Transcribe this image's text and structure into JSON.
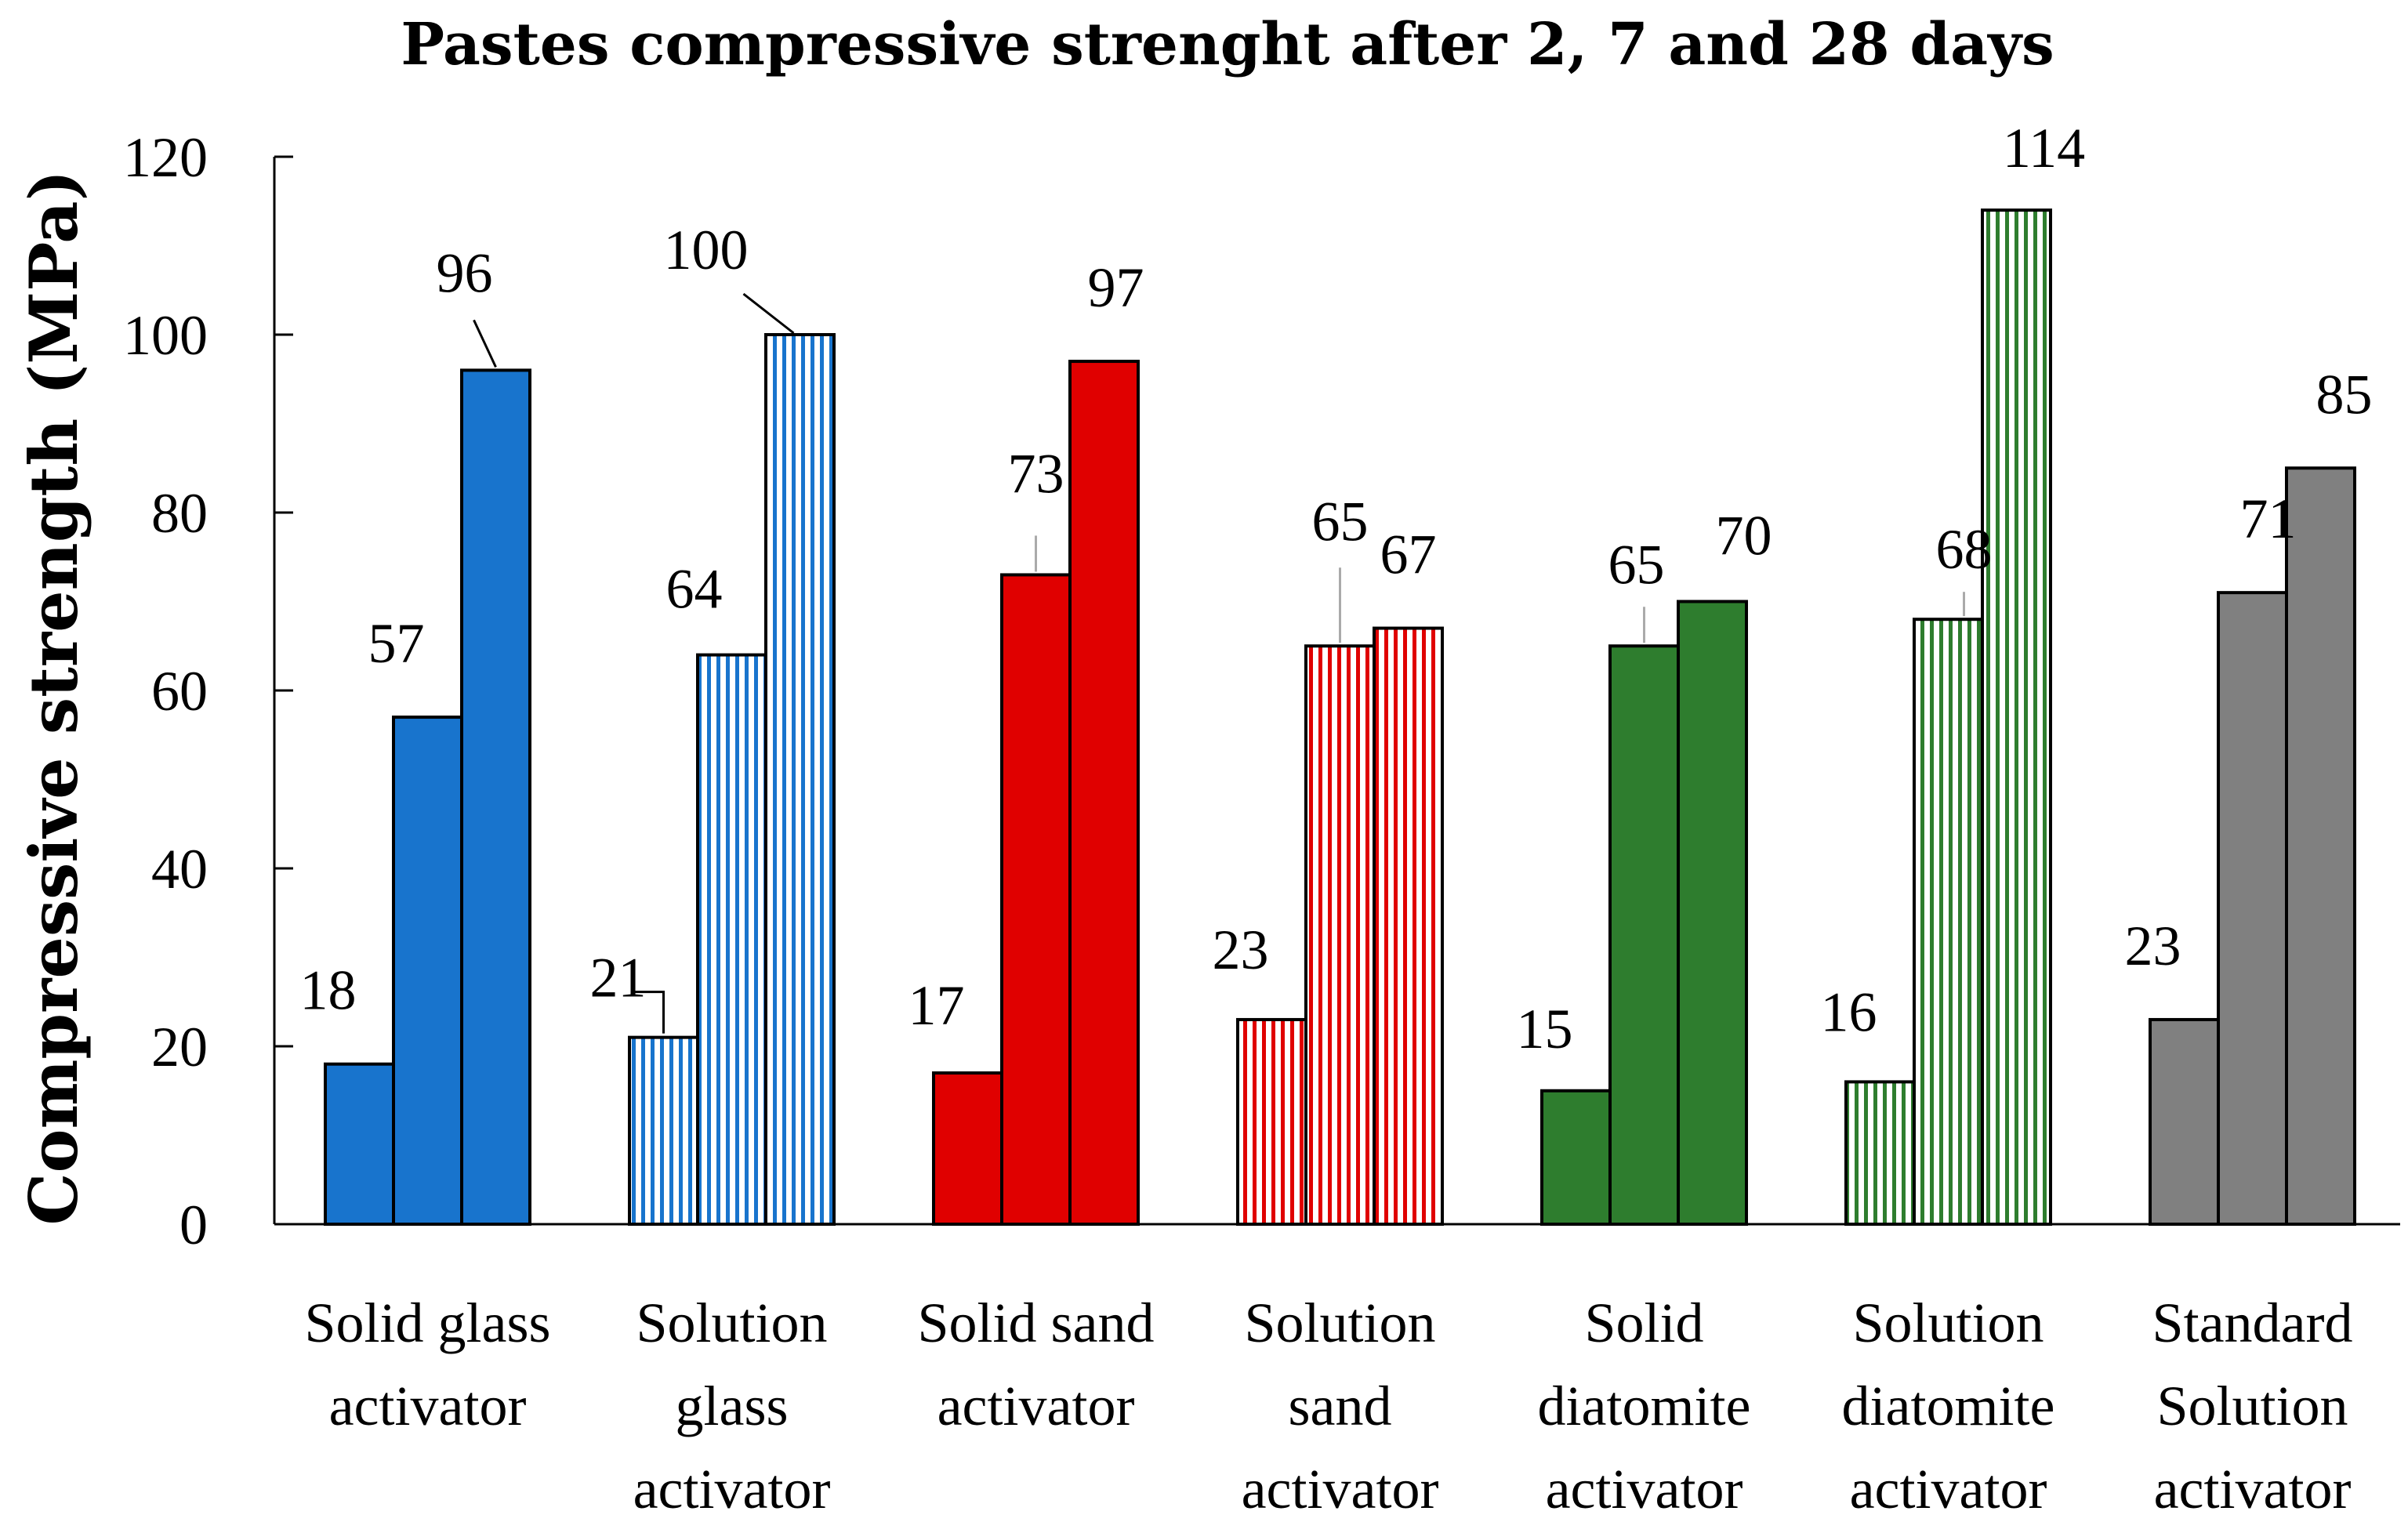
{
  "chart_data": {
    "type": "bar",
    "title": "Pastes compressive strenght after 2, 7 and 28 days",
    "xlabel": "",
    "ylabel": "Compressive strength (MPa)",
    "ylim": [
      0,
      120
    ],
    "yticks": [
      0,
      20,
      40,
      60,
      80,
      100,
      120
    ],
    "grid": false,
    "legend": "none",
    "series_names": [
      "2 days",
      "7 days",
      "28 days"
    ],
    "categories": [
      {
        "label_lines": [
          "Solid glass",
          "activator"
        ],
        "values": [
          18,
          57,
          96
        ],
        "color": "#1874CD",
        "pattern": "solid"
      },
      {
        "label_lines": [
          "Solution",
          "glass",
          "activator"
        ],
        "values": [
          21,
          64,
          100
        ],
        "color": "#1874CD",
        "pattern": "striped"
      },
      {
        "label_lines": [
          "Solid sand",
          "activator"
        ],
        "values": [
          17,
          73,
          97
        ],
        "color": "#E00000",
        "pattern": "solid"
      },
      {
        "label_lines": [
          "Solution",
          "sand",
          "activator"
        ],
        "values": [
          23,
          65,
          67
        ],
        "color": "#E00000",
        "pattern": "striped"
      },
      {
        "label_lines": [
          "Solid",
          "diatomite",
          "activator"
        ],
        "values": [
          15,
          65,
          70
        ],
        "color": "#2E7D2E",
        "pattern": "solid"
      },
      {
        "label_lines": [
          "Solution",
          "diatomite",
          "activator"
        ],
        "values": [
          16,
          68,
          114
        ],
        "color": "#2E7D2E",
        "pattern": "striped"
      },
      {
        "label_lines": [
          "Standard",
          "Solution",
          "activator"
        ],
        "values": [
          23,
          71,
          85
        ],
        "color": "#808080",
        "pattern": "solid"
      }
    ]
  }
}
